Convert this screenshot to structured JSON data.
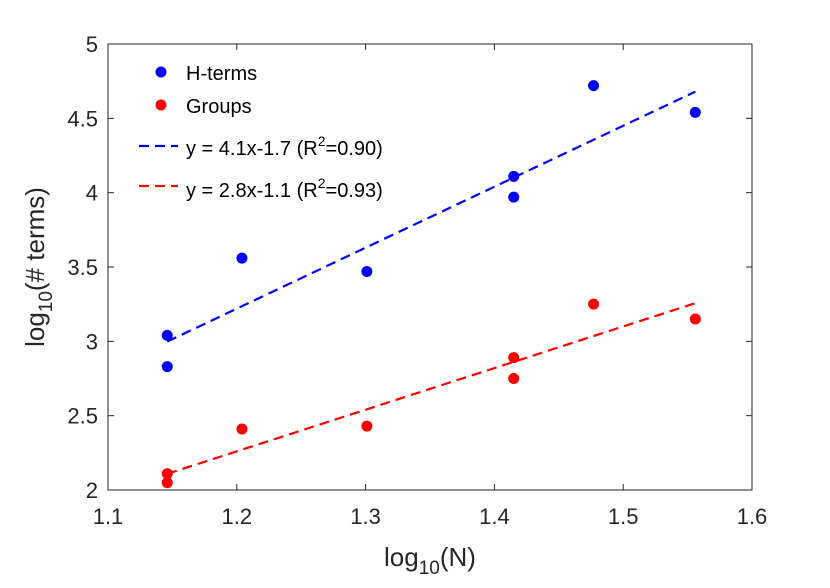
{
  "chart_data": {
    "type": "scatter",
    "title": "",
    "xlabel": {
      "base": "log",
      "sub": "10",
      "rest": "(N)"
    },
    "ylabel": {
      "base": "log",
      "sub": "10",
      "rest": "(# terms)"
    },
    "xlim": [
      1.1,
      1.6
    ],
    "ylim": [
      2,
      5
    ],
    "xticks": [
      1.1,
      1.2,
      1.3,
      1.4,
      1.5,
      1.6
    ],
    "xtick_labels": [
      "1.1",
      "1.2",
      "1.3",
      "1.4",
      "1.5",
      "1.6"
    ],
    "yticks": [
      2,
      2.5,
      3,
      3.5,
      4,
      4.5,
      5
    ],
    "ytick_labels": [
      "2",
      "2.5",
      "3",
      "3.5",
      "4",
      "4.5",
      "5"
    ],
    "grid": false,
    "legend_position": "top-left",
    "series": [
      {
        "name": "H-terms",
        "color": "#0000ff",
        "points": [
          {
            "x": 1.146,
            "y": 2.83
          },
          {
            "x": 1.146,
            "y": 3.04
          },
          {
            "x": 1.204,
            "y": 3.56
          },
          {
            "x": 1.301,
            "y": 3.47
          },
          {
            "x": 1.415,
            "y": 3.97
          },
          {
            "x": 1.415,
            "y": 4.11
          },
          {
            "x": 1.477,
            "y": 4.72
          },
          {
            "x": 1.556,
            "y": 4.54
          }
        ]
      },
      {
        "name": "Groups",
        "color": "#ff0000",
        "points": [
          {
            "x": 1.146,
            "y": 2.05
          },
          {
            "x": 1.146,
            "y": 2.11
          },
          {
            "x": 1.204,
            "y": 2.41
          },
          {
            "x": 1.301,
            "y": 2.43
          },
          {
            "x": 1.415,
            "y": 2.75
          },
          {
            "x": 1.415,
            "y": 2.89
          },
          {
            "x": 1.477,
            "y": 3.25
          },
          {
            "x": 1.556,
            "y": 3.15
          }
        ]
      }
    ],
    "fits": [
      {
        "label": "y = 4.1x-1.7 (R",
        "sup": "2",
        "label_end": "=0.90)",
        "color": "#0000ff",
        "slope": 4.1,
        "intercept": -1.7,
        "x_range": [
          1.146,
          1.556
        ]
      },
      {
        "label": "y = 2.8x-1.1 (R",
        "sup": "2",
        "label_end": "=0.93)",
        "color": "#ff0000",
        "slope": 2.8,
        "intercept": -1.1,
        "x_range": [
          1.146,
          1.556
        ]
      }
    ]
  }
}
